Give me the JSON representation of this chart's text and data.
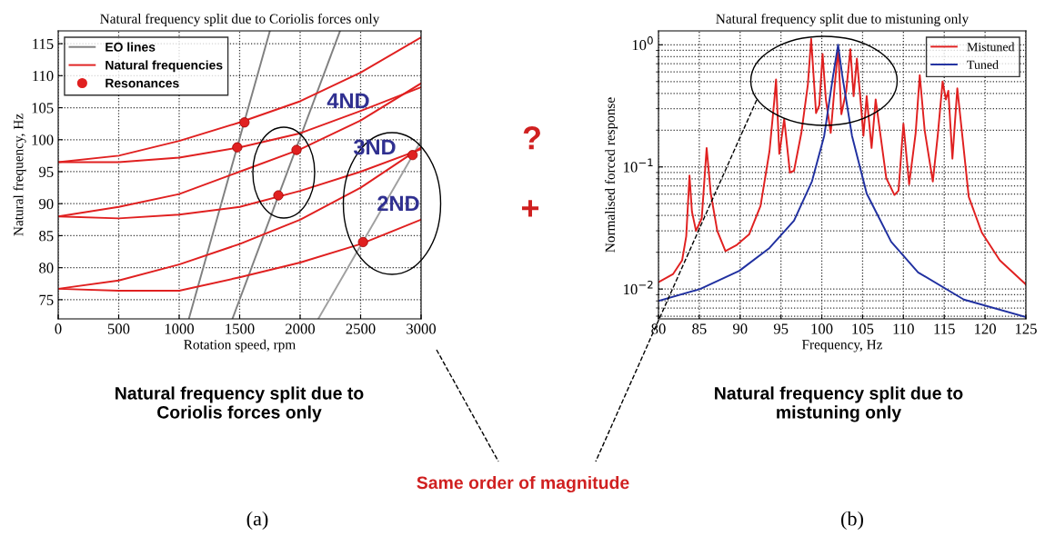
{
  "chart_data": [
    {
      "type": "line",
      "title": "Natural frequency split due to Coriolis forces only",
      "xlabel": "Rotation speed, rpm",
      "ylabel": "Natural frequency, Hz",
      "xlim": [
        0,
        3000
      ],
      "ylim": [
        72,
        117
      ],
      "xticks": [
        0,
        500,
        1000,
        1500,
        2000,
        2500,
        3000
      ],
      "yticks": [
        75,
        80,
        85,
        90,
        95,
        100,
        105,
        110,
        115
      ],
      "grid": true,
      "legend": "top left",
      "series": [
        {
          "name": "EO lines",
          "color": "#808080",
          "x": [
            1080,
            1750
          ],
          "values": [
            72,
            117
          ]
        },
        {
          "color": "#808080",
          "x": [
            1440,
            2330
          ],
          "values": [
            72,
            117
          ]
        },
        {
          "color": "#a0a0a0",
          "x": [
            2150,
            3000
          ],
          "values": [
            72,
            99.8
          ]
        },
        {
          "name": "Natural frequencies",
          "color": "#e02020",
          "x": [
            0,
            500,
            1000,
            1500,
            2000,
            2500,
            3000
          ],
          "values": [
            96.5,
            97.5,
            99.8,
            102.7,
            106,
            110.5,
            116
          ]
        },
        {
          "color": "#e02020",
          "x": [
            0,
            500,
            1000,
            1500,
            2000,
            2500,
            3000
          ],
          "values": [
            96.5,
            96.5,
            97.2,
            98.8,
            101,
            104.5,
            108.2
          ]
        },
        {
          "color": "#e02020",
          "x": [
            0,
            500,
            1000,
            1500,
            2000,
            2500,
            3000
          ],
          "values": [
            88,
            89.5,
            91.5,
            95,
            98.5,
            103,
            108.8
          ]
        },
        {
          "color": "#e02020",
          "x": [
            0,
            500,
            1000,
            1500,
            2000,
            2500,
            3000
          ],
          "values": [
            88,
            87.7,
            88.3,
            89.5,
            92,
            95,
            98.5
          ]
        },
        {
          "color": "#e02020",
          "x": [
            0,
            500,
            1000,
            1500,
            2000,
            2500,
            3000
          ],
          "values": [
            76.7,
            78,
            80.5,
            83.7,
            87.5,
            92.5,
            98.8
          ]
        },
        {
          "color": "#e02020",
          "x": [
            0,
            500,
            1000,
            1500,
            2000,
            2500,
            3000
          ],
          "values": [
            76.7,
            76.4,
            76.4,
            78.5,
            80.8,
            83.7,
            87.5
          ]
        },
        {
          "name": "Resonances",
          "type": "scatter",
          "marker": "circle",
          "color": "#e02020",
          "x": [
            1540,
            1480,
            1970,
            1820,
            2520,
            2930
          ],
          "values": [
            102.7,
            98.8,
            98.4,
            91.3,
            84,
            97.6
          ]
        }
      ],
      "annotations": [
        "4ND",
        "3ND",
        "2ND",
        "Natural frequency split due to\nCoriolis forces only",
        "(a)"
      ]
    },
    {
      "type": "line",
      "title": "Natural frequency split due to mistuning only",
      "xlabel": "Frequency, Hz",
      "ylabel": "Normalised forced response",
      "log": "y",
      "xlim": [
        80,
        125
      ],
      "ylim": [
        0.0057,
        1.3
      ],
      "xticks": [
        80,
        85,
        90,
        95,
        100,
        105,
        110,
        115,
        120,
        125
      ],
      "yticks": [
        {
          "value": 0.01,
          "label": "10$^{−2}$"
        },
        {
          "value": 0.1,
          "label": "10$^{−1}$"
        },
        {
          "value": 1,
          "label": "10$^{0}$"
        }
      ],
      "grid": true,
      "legend": "top right",
      "series": [
        {
          "name": "Mistuned",
          "color": "#e02020",
          "x": [
            80,
            81.8,
            82.9,
            83.4,
            83.8,
            84.1,
            84.6,
            85.3,
            85.9,
            86.4,
            87.2,
            88.2,
            89.6,
            91.1,
            92.5,
            93.6,
            94.2,
            94.4,
            94.8,
            95.4,
            96.1,
            96.6,
            97.5,
            98.3,
            98.7,
            99.3,
            99.7,
            100.1,
            100.5,
            101.1,
            101.6,
            102.0,
            102.4,
            103.0,
            103.5,
            103.9,
            104.3,
            104.8,
            105.1,
            105.5,
            106.1,
            106.6,
            107.2,
            107.9,
            108.9,
            109.4,
            110.0,
            110.7,
            111.5,
            112.0,
            112.6,
            113.6,
            114.2,
            114.8,
            115.2,
            115.5,
            116.0,
            116.6,
            117.1,
            118.0,
            119.6,
            121.8,
            125
          ],
          "values": [
            0.0114,
            0.0133,
            0.0172,
            0.027,
            0.085,
            0.043,
            0.03,
            0.038,
            0.143,
            0.061,
            0.03,
            0.0205,
            0.023,
            0.028,
            0.048,
            0.135,
            0.357,
            0.52,
            0.128,
            0.246,
            0.09,
            0.093,
            0.19,
            0.475,
            1.12,
            0.276,
            0.32,
            0.84,
            0.357,
            0.19,
            0.475,
            0.94,
            0.27,
            0.42,
            0.92,
            0.38,
            0.77,
            0.32,
            0.18,
            0.38,
            0.143,
            0.357,
            0.18,
            0.081,
            0.059,
            0.064,
            0.226,
            0.072,
            0.19,
            0.565,
            0.2,
            0.076,
            0.18,
            0.5,
            0.357,
            0.42,
            0.117,
            0.44,
            0.213,
            0.057,
            0.029,
            0.0172,
            0.0109
          ]
        },
        {
          "name": "Tuned",
          "color": "#2030a0",
          "x": [
            80,
            85.1,
            89.9,
            93.6,
            96.6,
            98.8,
            100.3,
            101.4,
            102.0,
            102.5,
            103.7,
            105.5,
            108.5,
            111.8,
            117.4,
            125
          ],
          "values": [
            0.008,
            0.01,
            0.0141,
            0.0217,
            0.0363,
            0.0762,
            0.18,
            0.565,
            1.0,
            0.565,
            0.18,
            0.0606,
            0.0244,
            0.0137,
            0.0082,
            0.0059
          ]
        }
      ],
      "annotations": [
        "Natural frequency split due to\nmistuning only",
        "(b)",
        "?",
        "+",
        "Same order of magnitude"
      ]
    }
  ]
}
